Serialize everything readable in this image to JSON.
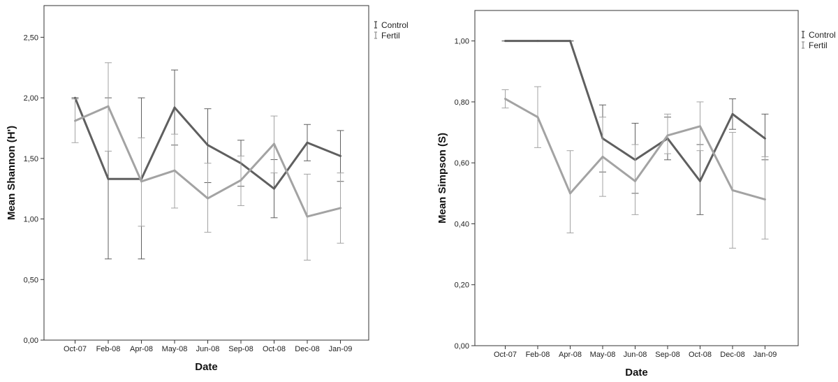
{
  "chart_data": [
    {
      "type": "line",
      "title": "",
      "xlabel": "Date",
      "ylabel": "Mean Shannon (H')",
      "categories": [
        "Oct-07",
        "Feb-08",
        "Apr-08",
        "May-08",
        "Jun-08",
        "Sep-08",
        "Oct-08",
        "Dec-08",
        "Jan-09"
      ],
      "ylim": [
        0,
        2.75
      ],
      "y_ticks": [
        "0,00",
        "0,50",
        "1,00",
        "1,50",
        "2,00",
        "2,50"
      ],
      "y_tick_values": [
        0,
        0.5,
        1.0,
        1.5,
        2.0,
        2.5
      ],
      "grid": false,
      "legend_position": "top-right",
      "series": [
        {
          "name": "Control",
          "color": "#5f5f5f",
          "values": [
            2.0,
            1.33,
            1.33,
            1.92,
            1.61,
            1.46,
            1.25,
            1.63,
            1.52
          ],
          "error_low": [
            2.0,
            0.67,
            0.67,
            1.61,
            1.3,
            1.27,
            1.01,
            1.48,
            1.31
          ],
          "error_high": [
            2.0,
            2.0,
            2.0,
            2.23,
            1.91,
            1.65,
            1.49,
            1.78,
            1.73
          ]
        },
        {
          "name": "Fertil",
          "color": "#a3a3a3",
          "values": [
            1.81,
            1.93,
            1.31,
            1.4,
            1.17,
            1.32,
            1.62,
            1.02,
            1.09
          ],
          "error_low": [
            1.63,
            1.56,
            0.94,
            1.09,
            0.89,
            1.11,
            1.38,
            0.66,
            0.8
          ],
          "error_high": [
            1.99,
            2.29,
            1.67,
            1.7,
            1.46,
            1.52,
            1.85,
            1.37,
            1.38
          ]
        }
      ]
    },
    {
      "type": "line",
      "title": "",
      "xlabel": "Date",
      "ylabel": "Mean Simpson (S)",
      "categories": [
        "Oct-07",
        "Feb-08",
        "Apr-08",
        "May-08",
        "Jun-08",
        "Sep-08",
        "Oct-08",
        "Dec-08",
        "Jan-09"
      ],
      "ylim": [
        0,
        1.1
      ],
      "y_ticks": [
        "0,00",
        "0,20",
        "0,40",
        "0,60",
        "0,80",
        "1,00"
      ],
      "y_tick_values": [
        0,
        0.2,
        0.4,
        0.6,
        0.8,
        1.0
      ],
      "grid": false,
      "legend_position": "top-right",
      "series": [
        {
          "name": "Control",
          "color": "#5f5f5f",
          "values": [
            1.0,
            1.0,
            1.0,
            0.68,
            0.61,
            0.68,
            0.54,
            0.76,
            0.68
          ],
          "error_low": [
            1.0,
            1.0,
            1.0,
            0.57,
            0.5,
            0.61,
            0.43,
            0.71,
            0.61
          ],
          "error_high": [
            1.0,
            1.0,
            1.0,
            0.79,
            0.73,
            0.75,
            0.66,
            0.81,
            0.76
          ]
        },
        {
          "name": "Fertil",
          "color": "#a3a3a3",
          "values": [
            0.81,
            0.75,
            0.5,
            0.62,
            0.54,
            0.69,
            0.72,
            0.51,
            0.48
          ],
          "error_low": [
            0.78,
            0.65,
            0.37,
            0.49,
            0.43,
            0.63,
            0.64,
            0.32,
            0.35
          ],
          "error_high": [
            0.84,
            0.85,
            0.64,
            0.75,
            0.66,
            0.76,
            0.8,
            0.7,
            0.62
          ]
        }
      ]
    }
  ]
}
